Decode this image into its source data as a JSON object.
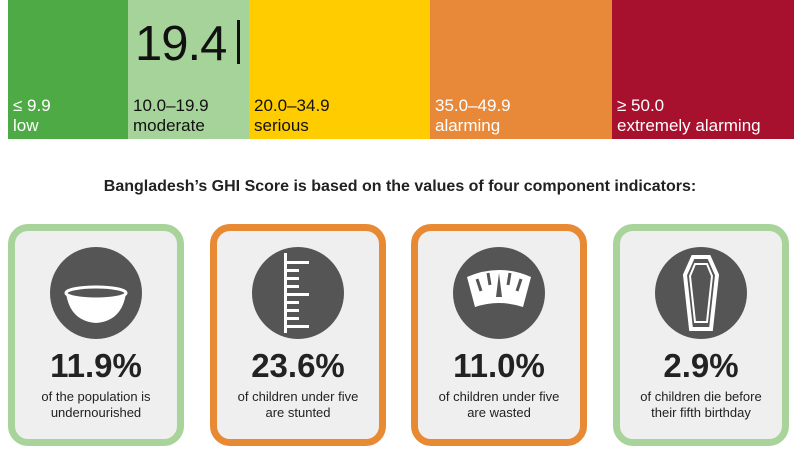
{
  "severity_scale": {
    "bands": [
      {
        "range": "≤ 9.9",
        "label": "low",
        "bg": "#4eaa45",
        "text_color": "#ffffff"
      },
      {
        "range": "10.0–19.9",
        "label": "moderate",
        "bg": "#a6d39a",
        "text_color": "#111111"
      },
      {
        "range": "20.0–34.9",
        "label": "serious",
        "bg": "#ffcc00",
        "text_color": "#111111"
      },
      {
        "range": "35.0–49.9",
        "label": "alarming",
        "bg": "#e8893a",
        "text_color": "#ffffff"
      },
      {
        "range": "≥ 50.0",
        "label": "extremely alarming",
        "bg": "#a8112e",
        "text_color": "#ffffff"
      }
    ],
    "score": "19.4"
  },
  "intro": "Bangladesh’s GHI Score is based on the values of four component indicators:",
  "indicators": [
    {
      "value": "11.9%",
      "line1": "of the population is",
      "line2": "undernourished",
      "icon": "bowl-icon",
      "border": "green"
    },
    {
      "value": "23.6%",
      "line1": "of children under five",
      "line2": "are stunted",
      "icon": "height-ruler-icon",
      "border": "orange"
    },
    {
      "value": "11.0%",
      "line1": "of children under five",
      "line2": "are wasted",
      "icon": "weight-scale-icon",
      "border": "orange"
    },
    {
      "value": "2.9%",
      "line1": "of children die before",
      "line2": "their fifth birthday",
      "icon": "coffin-icon",
      "border": "green"
    }
  ]
}
